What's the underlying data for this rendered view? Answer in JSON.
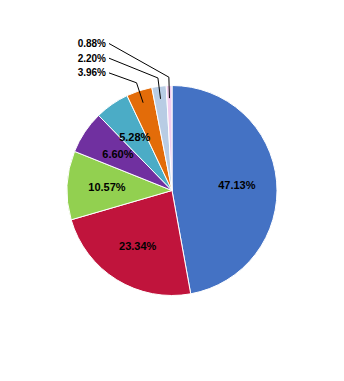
{
  "chart_data": {
    "type": "pie",
    "values": [
      47.13,
      23.34,
      10.57,
      6.6,
      5.28,
      3.96,
      2.2,
      0.88
    ],
    "value_labels": [
      "47.13%",
      "23.34%",
      "10.57%",
      "6.60%",
      "5.28%",
      "3.96%",
      "2.20%",
      "0.88%"
    ],
    "colors": [
      "#4472C4",
      "#C0143C",
      "#92D050",
      "#7030A0",
      "#4BACC6",
      "#E36C09",
      "#B8CCE4",
      "#F2CEEF"
    ],
    "data_labels": true
  }
}
